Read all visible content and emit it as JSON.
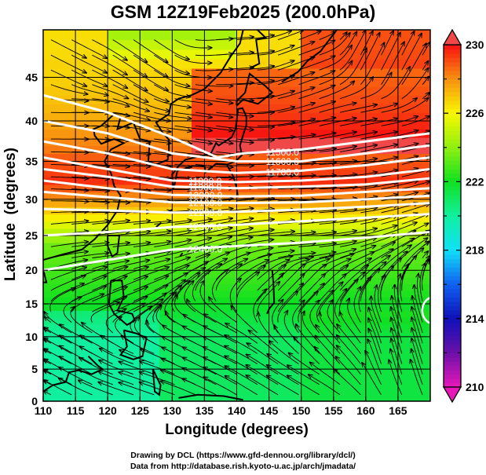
{
  "title": "GSM 12Z19Feb2025 (200.0hPa)",
  "credits": {
    "line1": "Drawing by DCL (https://www.gfd-dennou.org/library/dcl/)",
    "line2": "Data from http://database.rish.kyoto-u.ac.jp/arch/jmadata/"
  },
  "chart_data": {
    "type": "heatmap",
    "title": "GSM 12Z19Feb2025 (200.0hPa)",
    "xlabel": "Longitude (degrees)",
    "ylabel": "Latitude  (degrees)",
    "xlim": [
      110,
      170
    ],
    "ylim": [
      0,
      50
    ],
    "projection": "mercator",
    "grid": true,
    "x_ticks": [
      110,
      115,
      120,
      125,
      130,
      135,
      140,
      145,
      150,
      155,
      160,
      165
    ],
    "y_ticks": [
      0,
      5,
      10,
      15,
      20,
      25,
      30,
      35,
      40,
      45
    ],
    "colorbar": {
      "label_values": [
        210,
        214,
        218,
        222,
        226,
        230
      ],
      "minor_tick_step": 2,
      "range": [
        210,
        230
      ],
      "extend": "both",
      "placement": "right",
      "stops": [
        {
          "value": 210,
          "color": "#e818b8"
        },
        {
          "value": 212,
          "color": "#6a10a8"
        },
        {
          "value": 214,
          "color": "#1010b8"
        },
        {
          "value": 216,
          "color": "#1060f0"
        },
        {
          "value": 218,
          "color": "#10e0f8"
        },
        {
          "value": 220,
          "color": "#10f0a0"
        },
        {
          "value": 222,
          "color": "#10e020"
        },
        {
          "value": 224,
          "color": "#90f010"
        },
        {
          "value": 226,
          "color": "#f8f800"
        },
        {
          "value": 228,
          "color": "#f89010"
        },
        {
          "value": 230,
          "color": "#f81010"
        }
      ],
      "upper_extend_color": "#f04848",
      "lower_extend_color": "#e818b8"
    },
    "temperature_field_bands": [
      {
        "lat_from": 46,
        "lat_to": 50,
        "value": 226.5,
        "note": "orange/yellow, greener toward 130E at top"
      },
      {
        "lat_from": 36,
        "lat_to": 46,
        "value": 227.5,
        "note": "orange west of 130E, red-pink east of 135E"
      },
      {
        "lat_from": 29,
        "lat_to": 36,
        "value": 229.5,
        "note": "red-pink core"
      },
      {
        "lat_from": 27,
        "lat_to": 29,
        "value": 226.5,
        "note": "orange-yellow transition"
      },
      {
        "lat_from": 20,
        "lat_to": 27,
        "value": 223.5,
        "note": "yellow-green"
      },
      {
        "lat_from": 0,
        "lat_to": 20,
        "value": 221.0,
        "note": "green / aqua-green"
      }
    ],
    "height_contours": {
      "units": "m",
      "interval": 100,
      "levels": [
        11500.0,
        11600.0,
        11700.0,
        11800.0,
        11900.0,
        12000.0,
        12100.0,
        12200.0,
        12300.0,
        12400.0
      ],
      "labels": [
        "11500.0",
        "11600.0",
        "11700.0",
        "11800.0",
        "11900.0",
        "12000.0",
        "12100.0",
        "12200.0",
        "12300.0",
        "12400.0"
      ],
      "lines": [
        {
          "level": 11500.0,
          "points": [
            [
              110,
              43.0
            ],
            [
              120,
              41.0
            ],
            [
              130,
              38.0
            ],
            [
              137,
              35.5
            ],
            [
              141,
              36.0
            ],
            [
              150,
              36.5
            ],
            [
              160,
              37.5
            ],
            [
              170,
              38.5
            ]
          ]
        },
        {
          "level": 11600.0,
          "points": [
            [
              110,
              40.0
            ],
            [
              120,
              38.5
            ],
            [
              130,
              36.0
            ],
            [
              140,
              35.0
            ],
            [
              150,
              35.0
            ],
            [
              160,
              36.0
            ],
            [
              170,
              37.0
            ]
          ]
        },
        {
          "level": 11700.0,
          "points": [
            [
              110,
              37.5
            ],
            [
              120,
              36.0
            ],
            [
              130,
              34.0
            ],
            [
              140,
              33.5
            ],
            [
              150,
              33.8
            ],
            [
              160,
              34.5
            ],
            [
              170,
              35.5
            ]
          ]
        },
        {
          "level": 11800.0,
          "points": [
            [
              110,
              35.5
            ],
            [
              120,
              34.0
            ],
            [
              130,
              32.5
            ],
            [
              140,
              32.3
            ],
            [
              150,
              32.5
            ],
            [
              160,
              33.0
            ],
            [
              170,
              34.0
            ]
          ]
        },
        {
          "level": 11900.0,
          "points": [
            [
              110,
              34.0
            ],
            [
              120,
              33.0
            ],
            [
              130,
              31.7
            ],
            [
              140,
              31.5
            ],
            [
              150,
              31.7
            ],
            [
              160,
              32.0
            ],
            [
              170,
              32.8
            ]
          ]
        },
        {
          "level": 12000.0,
          "points": [
            [
              110,
              32.5
            ],
            [
              120,
              31.5
            ],
            [
              130,
              30.6
            ],
            [
              140,
              30.4
            ],
            [
              150,
              30.5
            ],
            [
              160,
              31.0
            ],
            [
              170,
              31.5
            ]
          ]
        },
        {
          "level": 12100.0,
          "points": [
            [
              110,
              31.0
            ],
            [
              120,
              30.3
            ],
            [
              130,
              29.6
            ],
            [
              140,
              29.5
            ],
            [
              150,
              29.6
            ],
            [
              160,
              30.0
            ],
            [
              170,
              30.5
            ]
          ]
        },
        {
          "level": 12200.0,
          "points": [
            [
              110,
              28.7
            ],
            [
              120,
              28.5
            ],
            [
              130,
              28.2
            ],
            [
              140,
              28.3
            ],
            [
              150,
              28.6
            ],
            [
              160,
              29.0
            ],
            [
              170,
              29.5
            ]
          ]
        },
        {
          "level": 12300.0,
          "points": [
            [
              110,
              25.0
            ],
            [
              120,
              25.5
            ],
            [
              130,
              26.2
            ],
            [
              140,
              26.5
            ],
            [
              150,
              27.0
            ],
            [
              160,
              27.5
            ],
            [
              170,
              28.0
            ]
          ]
        },
        {
          "level": 12400.0,
          "points": [
            [
              110,
              20.0
            ],
            [
              120,
              21.5
            ],
            [
              130,
              23.0
            ],
            [
              140,
              23.5
            ],
            [
              150,
              24.0
            ],
            [
              160,
              24.7
            ],
            [
              170,
              25.5
            ]
          ]
        }
      ],
      "small_closed_contour": {
        "lon": 169,
        "lat": 14,
        "note": "partial white ring at right edge"
      }
    },
    "wind_streamlines": {
      "north_of_20N": "predominantly westerly (eastward), jet core ~30-36N",
      "north_central_40_50N": "anticyclonic curve near 135-150E, northerly-flow entering from NW",
      "northeast_45_50N_155_170E": "curving northward",
      "south_of_15N": "easterly / north-easterly trades curving toward northwest",
      "direction_samples": [
        {
          "lon": 115,
          "lat": 47,
          "u": 1.0,
          "v": -0.35
        },
        {
          "lon": 125,
          "lat": 47,
          "u": 1.0,
          "v": -0.45
        },
        {
          "lon": 140,
          "lat": 47,
          "u": 1.0,
          "v": 0.05
        },
        {
          "lon": 150,
          "lat": 47,
          "u": 1.0,
          "v": 0.25
        },
        {
          "lon": 162,
          "lat": 47,
          "u": 0.6,
          "v": 0.8
        },
        {
          "lon": 115,
          "lat": 40,
          "u": 1.0,
          "v": 0.0
        },
        {
          "lon": 135,
          "lat": 40,
          "u": 1.0,
          "v": -0.1
        },
        {
          "lon": 160,
          "lat": 40,
          "u": 1.0,
          "v": 0.15
        },
        {
          "lon": 120,
          "lat": 32,
          "u": 1.0,
          "v": -0.05
        },
        {
          "lon": 150,
          "lat": 32,
          "u": 1.0,
          "v": 0.03
        },
        {
          "lon": 120,
          "lat": 24,
          "u": 1.0,
          "v": 0.1
        },
        {
          "lon": 150,
          "lat": 24,
          "u": 1.0,
          "v": 0.08
        },
        {
          "lon": 120,
          "lat": 17,
          "u": 1.0,
          "v": 0.4
        },
        {
          "lon": 150,
          "lat": 18,
          "u": 0.6,
          "v": 0.6
        },
        {
          "lon": 115,
          "lat": 8,
          "u": -1.0,
          "v": 0.55
        },
        {
          "lon": 135,
          "lat": 8,
          "u": -1.0,
          "v": 0.5
        },
        {
          "lon": 155,
          "lat": 8,
          "u": -0.7,
          "v": 0.8
        },
        {
          "lon": 165,
          "lat": 8,
          "u": -0.3,
          "v": 1.0
        },
        {
          "lon": 125,
          "lat": 3,
          "u": -1.0,
          "v": 0.35
        },
        {
          "lon": 150,
          "lat": 3,
          "u": -1.0,
          "v": 0.6
        }
      ]
    }
  }
}
